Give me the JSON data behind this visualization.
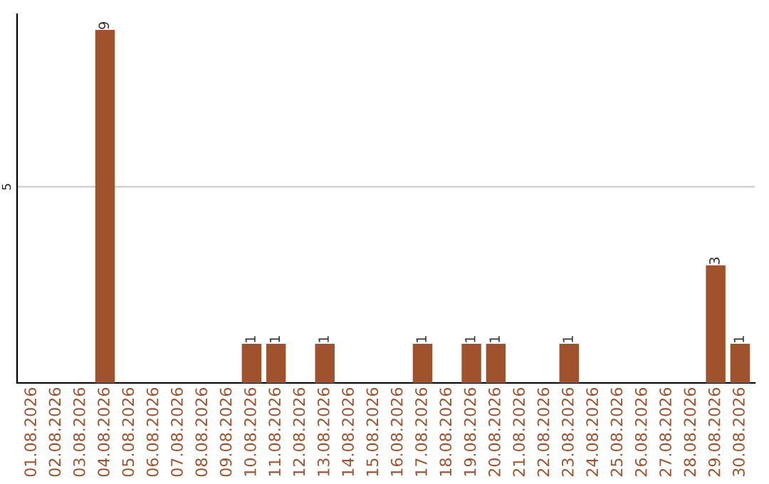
{
  "chart_data": {
    "type": "bar",
    "categories": [
      "01.08.2026",
      "02.08.2026",
      "03.08.2026",
      "04.08.2026",
      "05.08.2026",
      "06.08.2026",
      "07.08.2026",
      "08.08.2026",
      "09.08.2026",
      "10.08.2026",
      "11.08.2026",
      "12.08.2026",
      "13.08.2026",
      "14.08.2026",
      "15.08.2026",
      "16.08.2026",
      "17.08.2026",
      "18.08.2026",
      "19.08.2026",
      "20.08.2026",
      "21.08.2026",
      "22.08.2026",
      "23.08.2026",
      "24.08.2026",
      "25.08.2026",
      "26.08.2026",
      "27.08.2026",
      "28.08.2026",
      "29.08.2026",
      "30.08.2026"
    ],
    "values": [
      0,
      0,
      0,
      9,
      0,
      0,
      0,
      0,
      0,
      1,
      1,
      0,
      1,
      0,
      0,
      0,
      1,
      0,
      1,
      1,
      0,
      0,
      1,
      0,
      0,
      0,
      0,
      0,
      3,
      1
    ],
    "value_labels": [
      null,
      null,
      null,
      "9",
      null,
      null,
      null,
      null,
      null,
      "1",
      "1",
      null,
      "1",
      null,
      null,
      null,
      "1",
      null,
      "1",
      "1",
      null,
      null,
      "1",
      null,
      null,
      null,
      null,
      null,
      "3",
      "1"
    ],
    "color": "#a0522d",
    "ylim": [
      0,
      9.4
    ],
    "yticks": [
      5
    ],
    "grid": "y"
  }
}
